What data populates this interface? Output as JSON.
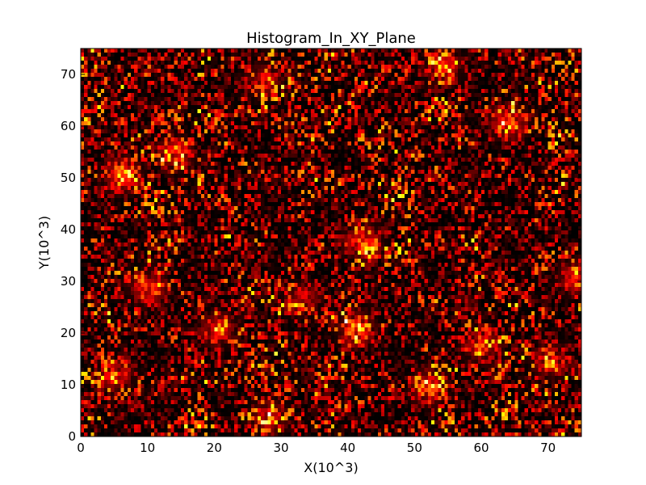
{
  "chart_data": {
    "type": "heatmap",
    "title": "Histogram_In_XY_Plane",
    "xlabel": "X(10^3)",
    "ylabel": "Y(10^3)",
    "xlim": [
      0,
      75
    ],
    "ylim": [
      0,
      75
    ],
    "x_ticks": [
      0,
      10,
      20,
      30,
      40,
      50,
      60,
      70
    ],
    "x_tick_labels": [
      "0",
      "10",
      "20",
      "30",
      "40",
      "50",
      "60",
      "70"
    ],
    "y_ticks": [
      0,
      10,
      20,
      30,
      40,
      50,
      60,
      70
    ],
    "y_tick_labels": [
      "0",
      "10",
      "20",
      "30",
      "40",
      "50",
      "60",
      "70"
    ],
    "colormap": "hot",
    "grid": false,
    "legend": "none",
    "bins_x": 150,
    "bins_y": 96,
    "hotspots": [
      {
        "x": 6,
        "y": 51,
        "intensity": 0.9
      },
      {
        "x": 10,
        "y": 29,
        "intensity": 0.8
      },
      {
        "x": 14,
        "y": 55,
        "intensity": 0.7
      },
      {
        "x": 27,
        "y": 69,
        "intensity": 0.6
      },
      {
        "x": 42,
        "y": 38,
        "intensity": 0.9
      },
      {
        "x": 41,
        "y": 21,
        "intensity": 0.85
      },
      {
        "x": 52,
        "y": 10,
        "intensity": 0.8
      },
      {
        "x": 54,
        "y": 72,
        "intensity": 0.7
      },
      {
        "x": 64,
        "y": 61,
        "intensity": 0.85
      },
      {
        "x": 60,
        "y": 18,
        "intensity": 0.7
      },
      {
        "x": 74,
        "y": 31,
        "intensity": 0.75
      },
      {
        "x": 28,
        "y": 4,
        "intensity": 0.6
      },
      {
        "x": 5,
        "y": 12,
        "intensity": 0.65
      },
      {
        "x": 20,
        "y": 21,
        "intensity": 0.6
      },
      {
        "x": 70,
        "y": 15,
        "intensity": 0.65
      },
      {
        "x": 33,
        "y": 27,
        "intensity": 0.55
      }
    ]
  }
}
